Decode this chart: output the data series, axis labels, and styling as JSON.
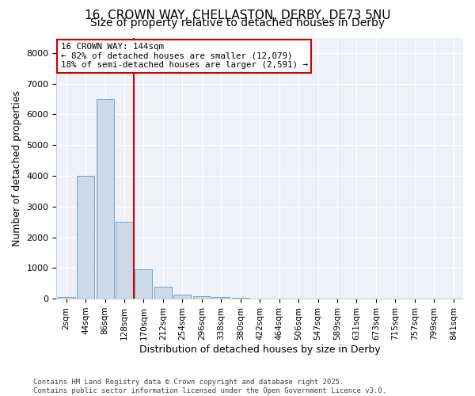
{
  "title1": "16, CROWN WAY, CHELLASTON, DERBY, DE73 5NU",
  "title2": "Size of property relative to detached houses in Derby",
  "xlabel": "Distribution of detached houses by size in Derby",
  "ylabel": "Number of detached properties",
  "categories": [
    "2sqm",
    "44sqm",
    "86sqm",
    "128sqm",
    "170sqm",
    "212sqm",
    "254sqm",
    "296sqm",
    "338sqm",
    "380sqm",
    "422sqm",
    "464sqm",
    "506sqm",
    "547sqm",
    "589sqm",
    "631sqm",
    "673sqm",
    "715sqm",
    "757sqm",
    "799sqm",
    "841sqm"
  ],
  "values": [
    50,
    4000,
    6500,
    2500,
    950,
    400,
    130,
    80,
    50,
    30,
    10,
    5,
    3,
    2,
    1,
    1,
    0,
    0,
    0,
    0,
    0
  ],
  "bar_color": "#ccd9e8",
  "bar_edge_color": "#7aa0c4",
  "red_line_x": 3.5,
  "red_line_color": "#cc0000",
  "annotation_text": "16 CROWN WAY: 144sqm\n← 82% of detached houses are smaller (12,079)\n18% of semi-detached houses are larger (2,591) →",
  "annotation_box_color": "#ffffff",
  "annotation_box_edge": "#cc0000",
  "ylim": [
    0,
    8500
  ],
  "yticks": [
    0,
    1000,
    2000,
    3000,
    4000,
    5000,
    6000,
    7000,
    8000
  ],
  "footer1": "Contains HM Land Registry data © Crown copyright and database right 2025.",
  "footer2": "Contains public sector information licensed under the Open Government Licence v3.0.",
  "bg_color": "#eef2f8",
  "title1_fontsize": 11,
  "title2_fontsize": 10,
  "annotation_fontsize": 7.8
}
